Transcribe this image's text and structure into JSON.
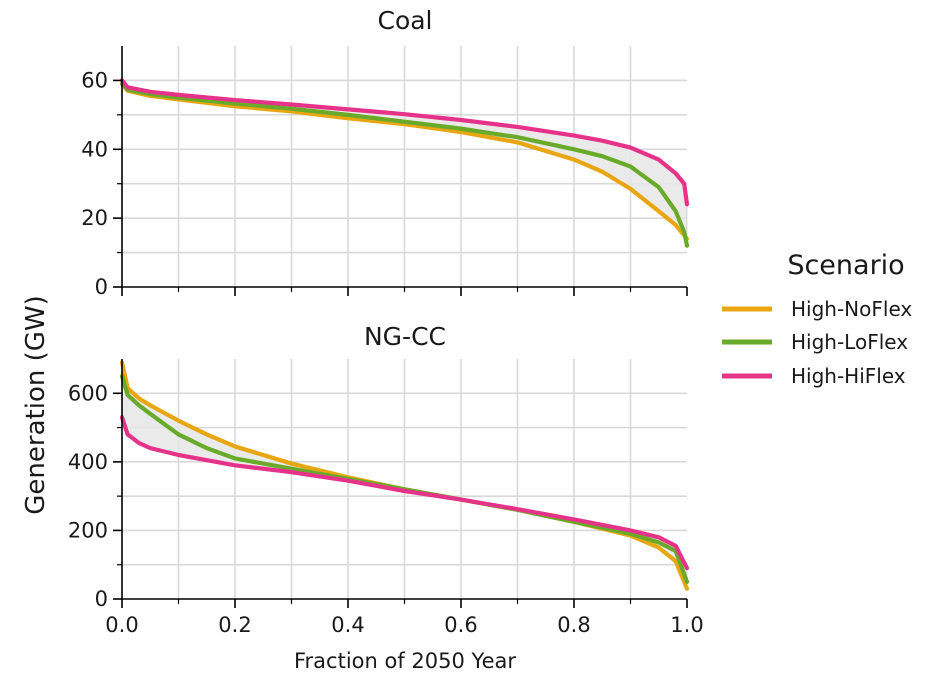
{
  "figure": {
    "ylabel": "Generation (GW)",
    "xlabel": "Fraction of 2050 Year"
  },
  "legend": {
    "title": "Scenario",
    "items": [
      {
        "label": "High-NoFlex",
        "color": "#E8A712"
      },
      {
        "label": "High-LoFlex",
        "color": "#6AAA2A"
      },
      {
        "label": "High-HiFlex",
        "color": "#E6338A"
      }
    ]
  },
  "chart_data": [
    {
      "type": "line",
      "title": "Coal",
      "xlabel": "Fraction of 2050 Year",
      "ylabel": "Generation (GW)",
      "xlim": [
        0,
        1
      ],
      "ylim": [
        0,
        70
      ],
      "xticks": [
        "0.0",
        "0.2",
        "0.4",
        "0.6",
        "0.8",
        "1.0"
      ],
      "yticks": [
        "0",
        "20",
        "40",
        "60"
      ],
      "grid": true,
      "shade_between_series": true,
      "series": [
        {
          "name": "High-NoFlex",
          "color": "#E8A712",
          "x": [
            0,
            0.01,
            0.05,
            0.1,
            0.2,
            0.3,
            0.4,
            0.5,
            0.6,
            0.7,
            0.8,
            0.85,
            0.9,
            0.95,
            0.98,
            1.0
          ],
          "y": [
            59,
            57,
            55.5,
            54.5,
            52.5,
            51,
            49,
            47.3,
            45,
            42,
            37,
            33.5,
            28.5,
            22,
            18,
            14
          ]
        },
        {
          "name": "High-LoFlex",
          "color": "#6AAA2A",
          "x": [
            0,
            0.01,
            0.05,
            0.1,
            0.2,
            0.3,
            0.4,
            0.5,
            0.6,
            0.7,
            0.8,
            0.85,
            0.9,
            0.95,
            0.98,
            0.995,
            1.0
          ],
          "y": [
            59,
            57.3,
            56,
            55,
            53.3,
            51.8,
            50,
            48,
            46,
            43.5,
            40,
            38,
            35,
            29,
            22,
            16,
            12
          ]
        },
        {
          "name": "High-HiFlex",
          "color": "#E6338A",
          "x": [
            0,
            0.01,
            0.05,
            0.1,
            0.2,
            0.3,
            0.4,
            0.5,
            0.6,
            0.7,
            0.8,
            0.85,
            0.9,
            0.95,
            0.98,
            0.995,
            1.0
          ],
          "y": [
            60,
            58,
            56.7,
            55.8,
            54.3,
            53,
            51.6,
            50.2,
            48.5,
            46.5,
            44,
            42.5,
            40.5,
            37,
            33,
            30,
            24
          ]
        }
      ]
    },
    {
      "type": "line",
      "title": "NG-CC",
      "xlabel": "Fraction of 2050 Year",
      "ylabel": "Generation (GW)",
      "xlim": [
        0,
        1
      ],
      "ylim": [
        0,
        700
      ],
      "xticks": [
        "0.0",
        "0.2",
        "0.4",
        "0.6",
        "0.8",
        "1.0"
      ],
      "yticks": [
        "0",
        "200",
        "400",
        "600"
      ],
      "grid": true,
      "shade_between_series": true,
      "series": [
        {
          "name": "High-NoFlex",
          "color": "#E8A712",
          "x": [
            0,
            0.01,
            0.03,
            0.05,
            0.1,
            0.15,
            0.2,
            0.3,
            0.4,
            0.5,
            0.6,
            0.7,
            0.8,
            0.9,
            0.95,
            0.98,
            1.0
          ],
          "y": [
            690,
            615,
            585,
            565,
            520,
            480,
            445,
            395,
            355,
            320,
            290,
            260,
            225,
            185,
            150,
            110,
            30
          ]
        },
        {
          "name": "High-LoFlex",
          "color": "#6AAA2A",
          "x": [
            0,
            0.01,
            0.03,
            0.05,
            0.1,
            0.15,
            0.2,
            0.3,
            0.4,
            0.5,
            0.6,
            0.7,
            0.8,
            0.9,
            0.95,
            0.98,
            1.0
          ],
          "y": [
            650,
            595,
            565,
            540,
            480,
            440,
            410,
            380,
            350,
            320,
            290,
            260,
            225,
            190,
            165,
            140,
            50
          ]
        },
        {
          "name": "High-HiFlex",
          "color": "#E6338A",
          "x": [
            0,
            0.01,
            0.03,
            0.05,
            0.1,
            0.15,
            0.2,
            0.3,
            0.4,
            0.5,
            0.6,
            0.7,
            0.8,
            0.9,
            0.95,
            0.98,
            1.0
          ],
          "y": [
            530,
            480,
            455,
            440,
            420,
            405,
            390,
            370,
            345,
            315,
            290,
            262,
            232,
            200,
            180,
            155,
            90
          ]
        }
      ]
    }
  ]
}
